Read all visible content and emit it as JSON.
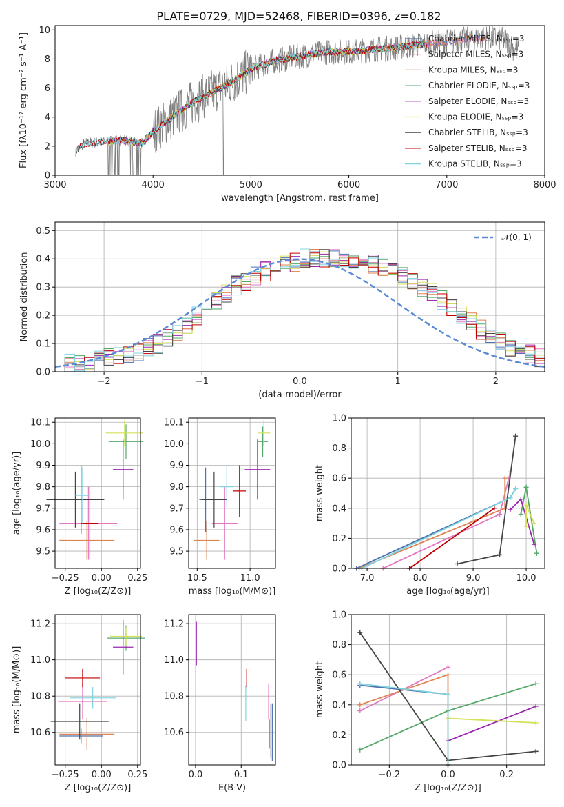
{
  "title": "PLATE=0729, MJD=52468, FIBERID=0396, z=0.182",
  "colors": {
    "Chabrier MILES": "#4c72b0",
    "Salpeter MILES": "#e377c2",
    "Kroupa MILES": "#dd8452",
    "Chabrier ELODIE": "#55a868",
    "Salpeter ELODIE": "#9c27b0",
    "Kroupa ELODIE": "#d4e157",
    "Chabrier STELIB": "#444444",
    "Salpeter STELIB": "#c00000",
    "Kroupa STELIB": "#80d4dd",
    "data": "#808080",
    "gauss": "#5b8bd6"
  },
  "chart_data": [
    {
      "id": "spectrum",
      "type": "line",
      "xlabel": "wavelength [Angstrom, rest frame]",
      "ylabel": "Flux [fλ10⁻¹⁷ erg cm⁻² s⁻¹ A⁻¹]",
      "xlim": [
        3000,
        8000
      ],
      "ylim": [
        0,
        10.3
      ],
      "xticks": [
        3000,
        4000,
        5000,
        6000,
        7000,
        8000
      ],
      "yticks": [
        0,
        2,
        4,
        6,
        8,
        10
      ],
      "legend": [
        "Chabrier MILES, Nₛₛₚ=3",
        "Salpeter MILES, Nₛₛₚ=3",
        "Kroupa MILES, Nₛₛₚ=3",
        "Chabrier ELODIE, Nₛₛₚ=3",
        "Salpeter ELODIE, Nₛₛₚ=3",
        "Kroupa ELODIE, Nₛₛₚ=3",
        "Chabrier STELIB, Nₛₛₚ=3",
        "Salpeter STELIB, Nₛₛₚ=3",
        "Kroupa STELIB, Nₛₛₚ=3"
      ],
      "continuum": [
        [
          3210,
          1.7
        ],
        [
          3300,
          2.2
        ],
        [
          3500,
          2.3
        ],
        [
          3700,
          2.4
        ],
        [
          3900,
          2.2
        ],
        [
          4000,
          3.0
        ],
        [
          4200,
          4.0
        ],
        [
          4400,
          5.0
        ],
        [
          4600,
          5.7
        ],
        [
          4800,
          6.4
        ],
        [
          5000,
          7.3
        ],
        [
          5200,
          7.8
        ],
        [
          5500,
          8.2
        ],
        [
          5800,
          8.5
        ],
        [
          6000,
          8.5
        ],
        [
          6500,
          8.8
        ],
        [
          7000,
          9.2
        ],
        [
          7400,
          9.5
        ],
        [
          7600,
          9.3
        ],
        [
          7700,
          8.6
        ]
      ]
    },
    {
      "id": "residuals",
      "type": "histogram",
      "xlabel": "(data-model)/error",
      "ylabel": "Normed distribution",
      "xlim": [
        -2.5,
        2.5
      ],
      "ylim": [
        0,
        0.53
      ],
      "xticks": [
        -2,
        -1,
        0,
        1,
        2
      ],
      "yticks": [
        0.0,
        0.1,
        0.2,
        0.3,
        0.4,
        0.5
      ],
      "legend": [
        "𝒩(0, 1)"
      ],
      "bin_width": 0.1,
      "hist": [
        0.03,
        0.03,
        0.025,
        0.03,
        0.04,
        0.05,
        0.06,
        0.065,
        0.07,
        0.085,
        0.1,
        0.12,
        0.145,
        0.17,
        0.2,
        0.225,
        0.255,
        0.28,
        0.305,
        0.32,
        0.34,
        0.355,
        0.37,
        0.38,
        0.39,
        0.4,
        0.4,
        0.4,
        0.4,
        0.4,
        0.4,
        0.39,
        0.38,
        0.37,
        0.355,
        0.34,
        0.32,
        0.3,
        0.28,
        0.255,
        0.23,
        0.2,
        0.175,
        0.15,
        0.125,
        0.105,
        0.09,
        0.07,
        0.06,
        0.05
      ]
    },
    {
      "id": "age_vs_Z",
      "type": "scatter",
      "xlabel": "Z [log₁₀(Z/Z⊙)]",
      "ylabel": "age  [log₁₀(age/yr)]",
      "xlim": [
        -0.32,
        0.27
      ],
      "ylim": [
        9.42,
        10.12
      ],
      "xticks": [
        -0.25,
        0.0,
        0.25
      ],
      "yticks": [
        9.5,
        9.6,
        9.7,
        9.8,
        9.9,
        10.0,
        10.1
      ],
      "points": [
        {
          "s": "Chabrier MILES",
          "x": -0.14,
          "y": 9.74,
          "xe": 0.09,
          "ye": 0.16
        },
        {
          "s": "Salpeter MILES",
          "x": -0.09,
          "y": 9.63,
          "xe": 0.2,
          "ye": 0.17
        },
        {
          "s": "Kroupa MILES",
          "x": -0.1,
          "y": 9.55,
          "xe": 0.19,
          "ye": 0.09
        },
        {
          "s": "Chabrier ELODIE",
          "x": 0.17,
          "y": 10.01,
          "xe": 0.12,
          "ye": 0.08
        },
        {
          "s": "Salpeter ELODIE",
          "x": 0.15,
          "y": 9.88,
          "xe": 0.07,
          "ye": 0.14
        },
        {
          "s": "Kroupa ELODIE",
          "x": 0.16,
          "y": 10.05,
          "xe": 0.13,
          "ye": 0.06
        },
        {
          "s": "Chabrier STELIB",
          "x": -0.18,
          "y": 9.74,
          "xe": 0.2,
          "ye": 0.13
        },
        {
          "s": "Salpeter STELIB",
          "x": -0.08,
          "y": 9.63,
          "xe": 0.06,
          "ye": 0.17
        },
        {
          "s": "Kroupa STELIB",
          "x": -0.13,
          "y": 9.76,
          "xe": 0.05,
          "ye": 0.13
        }
      ]
    },
    {
      "id": "age_vs_mass",
      "type": "scatter",
      "xlabel": "mass [log₁₀(M/M⊙)]",
      "ylabel": "",
      "xlim": [
        10.42,
        11.24
      ],
      "ylim": [
        9.42,
        10.12
      ],
      "xticks": [
        10.5,
        11.0
      ],
      "yticks": [
        9.5,
        9.6,
        9.7,
        9.8,
        9.9,
        10.0,
        10.1
      ],
      "points": [
        {
          "s": "Chabrier MILES",
          "x": 10.58,
          "y": 9.74,
          "xe": 0.06,
          "ye": 0.15
        },
        {
          "s": "Salpeter MILES",
          "x": 10.76,
          "y": 9.63,
          "xe": 0.12,
          "ye": 0.17
        },
        {
          "s": "Kroupa MILES",
          "x": 10.59,
          "y": 9.55,
          "xe": 0.12,
          "ye": 0.09
        },
        {
          "s": "Chabrier ELODIE",
          "x": 11.12,
          "y": 10.01,
          "xe": 0.05,
          "ye": 0.07
        },
        {
          "s": "Salpeter ELODIE",
          "x": 11.07,
          "y": 9.88,
          "xe": 0.12,
          "ye": 0.14
        },
        {
          "s": "Kroupa ELODIE",
          "x": 11.13,
          "y": 10.05,
          "xe": 0.06,
          "ye": 0.06
        },
        {
          "s": "Chabrier STELIB",
          "x": 10.66,
          "y": 9.74,
          "xe": 0.12,
          "ye": 0.13
        },
        {
          "s": "Salpeter STELIB",
          "x": 10.9,
          "y": 9.78,
          "xe": 0.06,
          "ye": 0.12
        },
        {
          "s": "Kroupa STELIB",
          "x": 10.78,
          "y": 9.8,
          "xe": 0.06,
          "ye": 0.1
        }
      ]
    },
    {
      "id": "weight_vs_age",
      "type": "line",
      "xlabel": "age  [log₁₀(age/yr)]",
      "ylabel": "mass weight",
      "xlim": [
        6.7,
        10.35
      ],
      "ylim": [
        0,
        1.0
      ],
      "xticks": [
        7,
        8,
        9,
        10
      ],
      "yticks": [
        0.0,
        0.2,
        0.4,
        0.6,
        0.8,
        1.0
      ],
      "series": [
        {
          "s": "Chabrier MILES",
          "x": [
            6.8,
            9.7,
            9.8
          ],
          "y": [
            0.0,
            0.47,
            0.53
          ]
        },
        {
          "s": "Salpeter MILES",
          "x": [
            7.3,
            9.5,
            9.7
          ],
          "y": [
            0.0,
            0.36,
            0.64
          ]
        },
        {
          "s": "Kroupa MILES",
          "x": [
            6.85,
            9.6,
            9.6
          ],
          "y": [
            0.0,
            0.4,
            0.6
          ]
        },
        {
          "s": "Chabrier ELODIE",
          "x": [
            9.9,
            10.0,
            10.2
          ],
          "y": [
            0.36,
            0.54,
            0.1
          ]
        },
        {
          "s": "Salpeter ELODIE",
          "x": [
            9.7,
            9.9,
            10.15
          ],
          "y": [
            0.39,
            0.46,
            0.16
          ]
        },
        {
          "s": "Kroupa ELODIE",
          "x": [
            10.0,
            10.0,
            10.15
          ],
          "y": [
            0.28,
            0.42,
            0.3
          ]
        },
        {
          "s": "Chabrier STELIB",
          "x": [
            8.7,
            9.5,
            9.8
          ],
          "y": [
            0.03,
            0.09,
            0.88
          ]
        },
        {
          "s": "Salpeter STELIB",
          "x": [
            7.8,
            9.4
          ],
          "y": [
            0.0,
            0.4
          ]
        },
        {
          "s": "Kroupa STELIB",
          "x": [
            6.9,
            9.7,
            9.8
          ],
          "y": [
            0.0,
            0.47,
            0.53
          ]
        }
      ]
    },
    {
      "id": "mass_vs_Z",
      "type": "scatter",
      "xlabel": "Z [log₁₀(Z/Z⊙)]",
      "ylabel": "mass [log₁₀(M/M⊙)]",
      "xlim": [
        -0.32,
        0.27
      ],
      "ylim": [
        10.42,
        11.25
      ],
      "xticks": [
        -0.25,
        0.0,
        0.25
      ],
      "yticks": [
        10.6,
        10.8,
        11.0,
        11.2
      ],
      "points": [
        {
          "s": "Chabrier MILES",
          "x": -0.14,
          "y": 10.58,
          "xe": 0.15,
          "ye": 0.04
        },
        {
          "s": "Salpeter MILES",
          "x": -0.13,
          "y": 10.77,
          "xe": 0.17,
          "ye": 0.1
        },
        {
          "s": "Kroupa MILES",
          "x": -0.1,
          "y": 10.59,
          "xe": 0.19,
          "ye": 0.09
        },
        {
          "s": "Chabrier ELODIE",
          "x": 0.17,
          "y": 11.12,
          "xe": 0.13,
          "ye": 0.07
        },
        {
          "s": "Salpeter ELODIE",
          "x": 0.15,
          "y": 11.07,
          "xe": 0.07,
          "ye": 0.15
        },
        {
          "s": "Kroupa ELODIE",
          "x": 0.17,
          "y": 11.13,
          "xe": 0.11,
          "ye": 0.05
        },
        {
          "s": "Chabrier STELIB",
          "x": -0.15,
          "y": 10.66,
          "xe": 0.2,
          "ye": 0.1
        },
        {
          "s": "Salpeter STELIB",
          "x": -0.13,
          "y": 10.9,
          "xe": 0.12,
          "ye": 0.05
        },
        {
          "s": "Kroupa STELIB",
          "x": -0.06,
          "y": 10.79,
          "xe": 0.16,
          "ye": 0.06
        }
      ]
    },
    {
      "id": "mass_vs_EBV",
      "type": "scatter",
      "xlabel": "E(B-V)",
      "ylabel": "",
      "xlim": [
        -0.015,
        0.175
      ],
      "ylim": [
        10.42,
        11.25
      ],
      "xticks": [
        0.0,
        0.1
      ],
      "yticks": [
        10.6,
        10.8,
        11.0,
        11.2
      ],
      "points": [
        {
          "s": "Chabrier MILES",
          "x": 0.168,
          "y": 10.6,
          "xe": 0,
          "ye": 0.16
        },
        {
          "s": "Salpeter MILES",
          "x": 0.16,
          "y": 10.77,
          "xe": 0,
          "ye": 0.1
        },
        {
          "s": "Kroupa MILES",
          "x": 0.162,
          "y": 10.59,
          "xe": 0,
          "ye": 0.08
        },
        {
          "s": "Chabrier ELODIE",
          "x": 0.001,
          "y": 11.12,
          "xe": 0,
          "ye": 0.07
        },
        {
          "s": "Salpeter ELODIE",
          "x": 0.002,
          "y": 11.09,
          "xe": 0,
          "ye": 0.12
        },
        {
          "s": "Kroupa ELODIE",
          "x": 0.0,
          "y": 11.1,
          "xe": 0,
          "ye": 0.08
        },
        {
          "s": "Chabrier STELIB",
          "x": 0.165,
          "y": 10.61,
          "xe": 0,
          "ye": 0.15
        },
        {
          "s": "Salpeter STELIB",
          "x": 0.112,
          "y": 10.9,
          "xe": 0,
          "ye": 0.05
        },
        {
          "s": "Kroupa STELIB",
          "x": 0.11,
          "y": 10.76,
          "xe": 0,
          "ye": 0.1
        }
      ]
    },
    {
      "id": "weight_vs_Z",
      "type": "line",
      "xlabel": "Z [log₁₀(Z/Z⊙)]",
      "ylabel": "mass weight",
      "xlim": [
        -0.33,
        0.33
      ],
      "ylim": [
        0,
        1.0
      ],
      "xticks": [
        -0.2,
        0.0,
        0.2
      ],
      "yticks": [
        0.0,
        0.2,
        0.4,
        0.6,
        0.8,
        1.0
      ],
      "series": [
        {
          "s": "Chabrier MILES",
          "x": [
            -0.3,
            0.0
          ],
          "y": [
            0.53,
            0.47
          ]
        },
        {
          "s": "Salpeter MILES",
          "x": [
            -0.3,
            0.0
          ],
          "y": [
            0.36,
            0.65
          ]
        },
        {
          "s": "Kroupa MILES",
          "x": [
            -0.3,
            0.0,
            0.0
          ],
          "y": [
            0.4,
            0.6,
            0.0
          ]
        },
        {
          "s": "Chabrier ELODIE",
          "x": [
            -0.3,
            0.0,
            0.3
          ],
          "y": [
            0.1,
            0.36,
            0.54
          ]
        },
        {
          "s": "Salpeter ELODIE",
          "x": [
            0.0,
            0.3
          ],
          "y": [
            0.16,
            0.39
          ]
        },
        {
          "s": "Kroupa ELODIE",
          "x": [
            0.0,
            0.3
          ],
          "y": [
            0.31,
            0.28
          ]
        },
        {
          "s": "Chabrier STELIB",
          "x": [
            -0.3,
            0.0,
            0.3
          ],
          "y": [
            0.88,
            0.03,
            0.09
          ]
        },
        {
          "s": "Salpeter STELIB",
          "x": [
            0.0
          ],
          "y": [
            0.0
          ]
        },
        {
          "s": "Kroupa STELIB",
          "x": [
            -0.3,
            0.0,
            0.0
          ],
          "y": [
            0.54,
            0.47,
            0.0
          ]
        }
      ]
    }
  ]
}
